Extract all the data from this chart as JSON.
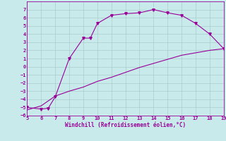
{
  "xlabel": "Windchill (Refroidissement éolien,°C)",
  "curve1_x": [
    5,
    6,
    6.5,
    7,
    8,
    9,
    9.5,
    10,
    11,
    12,
    13,
    14,
    15,
    16,
    17,
    18,
    19
  ],
  "curve1_y": [
    -5,
    -5.2,
    -5.1,
    -3.7,
    1.0,
    3.5,
    3.5,
    5.3,
    6.3,
    6.5,
    6.6,
    7.0,
    6.6,
    6.3,
    5.3,
    4.0,
    2.2
  ],
  "curve2_x": [
    5,
    6,
    7,
    8,
    9,
    10,
    11,
    12,
    13,
    14,
    15,
    16,
    17,
    18,
    19
  ],
  "curve2_y": [
    -5.3,
    -4.8,
    -3.6,
    -3.0,
    -2.5,
    -1.8,
    -1.3,
    -0.7,
    -0.1,
    0.4,
    0.9,
    1.4,
    1.7,
    2.0,
    2.2
  ],
  "line_color": "#990099",
  "bg_color": "#c8eaea",
  "grid_color": "#aacccc",
  "xlim": [
    5,
    19
  ],
  "ylim": [
    -6,
    8
  ],
  "xticks": [
    5,
    6,
    7,
    8,
    9,
    10,
    11,
    12,
    13,
    14,
    15,
    16,
    17,
    18,
    19
  ],
  "yticks": [
    -6,
    -5,
    -4,
    -3,
    -2,
    -1,
    0,
    1,
    2,
    3,
    4,
    5,
    6,
    7
  ]
}
